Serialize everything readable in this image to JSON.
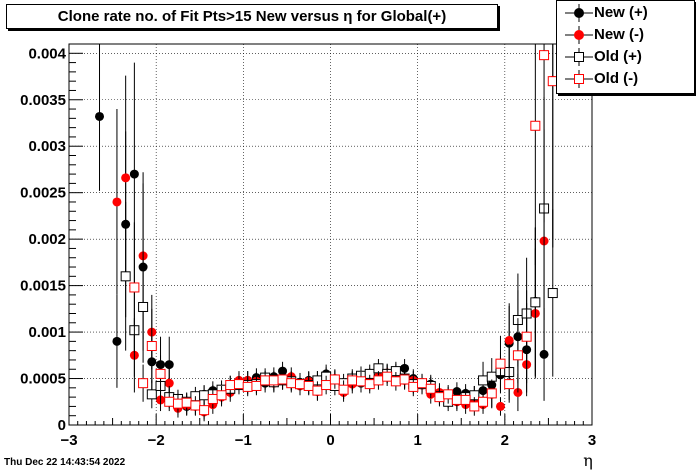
{
  "chart_data": {
    "type": "scatter",
    "title": "Clone rate no. of Fit Pts>15 New versus  η for Global(+)",
    "xlabel": "η",
    "ylabel": "",
    "xlim": [
      -3,
      3
    ],
    "ylim": [
      0,
      0.0041
    ],
    "x_ticks": [
      -3,
      -2,
      -1,
      0,
      1,
      2,
      3
    ],
    "x_tick_labels": [
      "−3",
      "−2",
      "−1",
      "0",
      "1",
      "2",
      "3"
    ],
    "y_ticks": [
      0,
      0.0005,
      0.001,
      0.0015,
      0.002,
      0.0025,
      0.003,
      0.0035,
      0.004
    ],
    "y_tick_labels": [
      "0",
      "0.0005",
      "0.001",
      "0.0015",
      "0.002",
      "0.0025",
      "0.003",
      "0.0035",
      "0.004"
    ],
    "grid": true,
    "legend_position": "top-right",
    "series": [
      {
        "name": "New (+)",
        "color": "#000000",
        "marker": "filled-circle",
        "x": [
          -2.65,
          -2.45,
          -2.35,
          -2.25,
          -2.15,
          -2.05,
          -1.95,
          -1.85,
          -1.75,
          -1.65,
          -1.55,
          -1.45,
          -1.35,
          -1.25,
          -1.15,
          -1.05,
          -0.95,
          -0.85,
          -0.75,
          -0.65,
          -0.55,
          -0.45,
          -0.35,
          -0.25,
          -0.15,
          -0.05,
          0.05,
          0.15,
          0.25,
          0.35,
          0.45,
          0.55,
          0.65,
          0.75,
          0.85,
          0.95,
          1.05,
          1.15,
          1.25,
          1.35,
          1.45,
          1.55,
          1.65,
          1.75,
          1.85,
          1.95,
          2.05,
          2.15,
          2.25,
          2.35,
          2.45
        ],
        "y": [
          0.00332,
          0.0009,
          0.00216,
          0.0027,
          0.0017,
          0.00068,
          0.00065,
          0.00065,
          0.00023,
          0.0002,
          0.00025,
          0.00033,
          0.00037,
          0.00033,
          0.00043,
          0.00046,
          0.00048,
          0.00051,
          0.00045,
          0.00052,
          0.00058,
          0.00048,
          0.00046,
          0.00048,
          0.00048,
          0.00055,
          0.00048,
          0.00038,
          0.00047,
          0.00045,
          0.00051,
          0.00052,
          0.00055,
          0.00056,
          0.00061,
          0.0005,
          0.00045,
          0.00044,
          0.00032,
          0.00031,
          0.00036,
          0.00034,
          0.00032,
          0.00037,
          0.00043,
          0.00054,
          0.00088,
          0.00095,
          0.00081,
          0.00133,
          0.00076
        ],
        "err": [
          0.0008,
          0.0005,
          0.001,
          0.0012,
          0.0009,
          0.0003,
          0.0003,
          0.0003,
          0.00012,
          0.0001,
          0.0001,
          0.0001,
          0.0001,
          0.0001,
          0.0001,
          0.0001,
          0.0001,
          0.0001,
          0.0001,
          0.0001,
          0.0001,
          0.0001,
          0.0001,
          0.0001,
          0.0001,
          0.0001,
          0.0001,
          0.0001,
          0.0001,
          0.0001,
          0.0001,
          0.0001,
          0.0001,
          0.0001,
          0.0001,
          0.0001,
          0.0001,
          0.0001,
          0.0001,
          0.0001,
          0.0001,
          0.0001,
          0.0001,
          0.0001,
          0.0001,
          0.0002,
          0.0004,
          0.0005,
          0.0005,
          0.0008,
          0.0005
        ]
      },
      {
        "name": "New (-)",
        "color": "#ff0000",
        "marker": "filled-circle",
        "x": [
          -2.45,
          -2.35,
          -2.25,
          -2.15,
          -2.05,
          -1.95,
          -1.85,
          -1.75,
          -1.65,
          -1.55,
          -1.45,
          -1.35,
          -1.25,
          -1.15,
          -1.05,
          -0.95,
          -0.85,
          -0.75,
          -0.65,
          -0.55,
          -0.45,
          -0.35,
          -0.25,
          -0.15,
          -0.05,
          0.05,
          0.15,
          0.25,
          0.35,
          0.45,
          0.55,
          0.65,
          0.75,
          0.85,
          0.95,
          1.05,
          1.15,
          1.25,
          1.35,
          1.45,
          1.55,
          1.65,
          1.75,
          1.85,
          1.95,
          2.05,
          2.15,
          2.25,
          2.35,
          2.45,
          2.55
        ],
        "y": [
          0.0024,
          0.00266,
          0.00075,
          0.00182,
          0.001,
          0.00027,
          0.00045,
          0.00018,
          0.00021,
          0.0002,
          0.00014,
          0.00022,
          0.0003,
          0.00035,
          0.00048,
          0.00048,
          0.00047,
          0.00048,
          0.00045,
          0.00048,
          0.00052,
          0.00042,
          0.00047,
          0.00036,
          0.0005,
          0.0005,
          0.00035,
          0.00044,
          0.00046,
          0.00047,
          0.00052,
          0.00056,
          0.00053,
          0.00048,
          0.00048,
          0.00043,
          0.00033,
          0.00035,
          0.00028,
          0.00025,
          0.00022,
          0.00025,
          0.00022,
          0.00033,
          0.0002,
          0.00091,
          0.00035,
          0.00065,
          0.0012,
          0.00198,
          0.00371
        ],
        "err": [
          0.001,
          0.0011,
          0.0004,
          0.0009,
          0.0004,
          0.00012,
          0.0002,
          0.0001,
          0.0001,
          0.0001,
          0.0001,
          0.0001,
          0.0001,
          0.0001,
          0.0001,
          0.0001,
          0.0001,
          0.0001,
          0.0001,
          0.0001,
          0.0001,
          0.0001,
          0.0001,
          0.0001,
          0.0001,
          0.0001,
          0.0001,
          0.0001,
          0.0001,
          0.0001,
          0.0001,
          0.0001,
          0.0001,
          0.0001,
          0.0001,
          0.0001,
          0.0001,
          0.0001,
          0.0001,
          0.0001,
          0.0001,
          0.0001,
          0.0001,
          0.00015,
          0.0001,
          0.0004,
          0.0002,
          0.0003,
          0.0007,
          0.0012,
          0.0018
        ]
      },
      {
        "name": "Old (+)",
        "color": "#000000",
        "marker": "open-square",
        "x": [
          -2.35,
          -2.25,
          -2.15,
          -2.05,
          -1.95,
          -1.85,
          -1.75,
          -1.65,
          -1.55,
          -1.45,
          -1.35,
          -1.25,
          -1.15,
          -1.05,
          -0.95,
          -0.85,
          -0.75,
          -0.65,
          -0.55,
          -0.45,
          -0.35,
          -0.25,
          -0.15,
          -0.05,
          0.05,
          0.15,
          0.25,
          0.35,
          0.45,
          0.55,
          0.65,
          0.75,
          0.85,
          0.95,
          1.05,
          1.15,
          1.25,
          1.35,
          1.45,
          1.55,
          1.65,
          1.75,
          1.85,
          1.95,
          2.05,
          2.15,
          2.25,
          2.35,
          2.45,
          2.55
        ],
        "y": [
          0.0016,
          0.00102,
          0.00127,
          0.00033,
          0.00042,
          0.0003,
          0.00028,
          0.00025,
          0.00031,
          0.00032,
          0.00033,
          0.00038,
          0.00039,
          0.00043,
          0.00043,
          0.00044,
          0.00051,
          0.00046,
          0.00048,
          0.00047,
          0.00044,
          0.00043,
          0.00048,
          0.00052,
          0.00042,
          0.00045,
          0.0005,
          0.00053,
          0.00055,
          0.00061,
          0.00055,
          0.00058,
          0.0005,
          0.00044,
          0.00044,
          0.00042,
          0.00031,
          0.00025,
          0.00027,
          0.0003,
          0.00032,
          0.00048,
          0.00052,
          0.00058,
          0.00057,
          0.00113,
          0.0012,
          0.00132,
          0.00233,
          0.00142
        ],
        "err": [
          0.0008,
          0.0005,
          0.0006,
          0.00015,
          0.0002,
          0.00012,
          0.0001,
          0.0001,
          0.0001,
          0.0001,
          0.0001,
          0.0001,
          0.0001,
          0.0001,
          0.0001,
          0.0001,
          0.0001,
          0.0001,
          0.0001,
          0.0001,
          0.0001,
          0.0001,
          0.0001,
          0.0001,
          0.0001,
          0.0001,
          0.0001,
          0.0001,
          0.0001,
          0.0001,
          0.0001,
          0.0001,
          0.0001,
          0.0001,
          0.0001,
          0.0001,
          0.0001,
          0.0001,
          0.0001,
          0.0001,
          0.0001,
          0.0002,
          0.0002,
          0.0002,
          0.0003,
          0.0005,
          0.0006,
          0.0008,
          0.0012,
          0.0009
        ]
      },
      {
        "name": "Old (-)",
        "color": "#ff0000",
        "marker": "open-square",
        "x": [
          -2.25,
          -2.15,
          -2.05,
          -1.95,
          -1.85,
          -1.75,
          -1.65,
          -1.55,
          -1.45,
          -1.35,
          -1.25,
          -1.15,
          -1.05,
          -0.95,
          -0.85,
          -0.75,
          -0.65,
          -0.55,
          -0.45,
          -0.35,
          -0.25,
          -0.15,
          -0.05,
          0.05,
          0.15,
          0.25,
          0.35,
          0.45,
          0.55,
          0.65,
          0.75,
          0.85,
          0.95,
          1.05,
          1.15,
          1.25,
          1.35,
          1.45,
          1.55,
          1.65,
          1.75,
          1.85,
          1.95,
          2.05,
          2.15,
          2.25,
          2.35,
          2.45,
          2.55
        ],
        "y": [
          0.00148,
          0.00045,
          0.00085,
          0.00055,
          0.00025,
          0.00023,
          0.00024,
          0.00021,
          0.00016,
          0.00028,
          0.00032,
          0.00043,
          0.00044,
          0.00041,
          0.00042,
          0.00048,
          0.00048,
          0.00049,
          0.00045,
          0.00044,
          0.00042,
          0.00037,
          0.00043,
          0.00049,
          0.00038,
          0.00048,
          0.00047,
          0.00044,
          0.00048,
          0.00052,
          0.00047,
          0.00049,
          0.00041,
          0.00045,
          0.00039,
          0.0003,
          0.00033,
          0.00027,
          0.00027,
          0.0002,
          0.00025,
          0.00034,
          0.00066,
          0.00044,
          0.00075,
          0.00095,
          0.00322,
          0.00398,
          0.0037
        ],
        "err": [
          0.0007,
          0.0002,
          0.0004,
          0.0002,
          0.0001,
          0.0001,
          0.0001,
          0.0001,
          0.0001,
          0.0001,
          0.0001,
          0.0001,
          0.0001,
          0.0001,
          0.0001,
          0.0001,
          0.0001,
          0.0001,
          0.0001,
          0.0001,
          0.0001,
          0.0001,
          0.0001,
          0.0001,
          0.0001,
          0.0001,
          0.0001,
          0.0001,
          0.0001,
          0.0001,
          0.0001,
          0.0001,
          0.0001,
          0.0001,
          0.0001,
          0.0001,
          0.0001,
          0.0001,
          0.0001,
          0.0001,
          0.0001,
          0.00015,
          0.0003,
          0.0002,
          0.0004,
          0.0005,
          0.0015,
          0.0018,
          0.0017
        ]
      }
    ]
  },
  "footer": {
    "timestamp": "Thu Dec 22 14:43:54 2022"
  }
}
